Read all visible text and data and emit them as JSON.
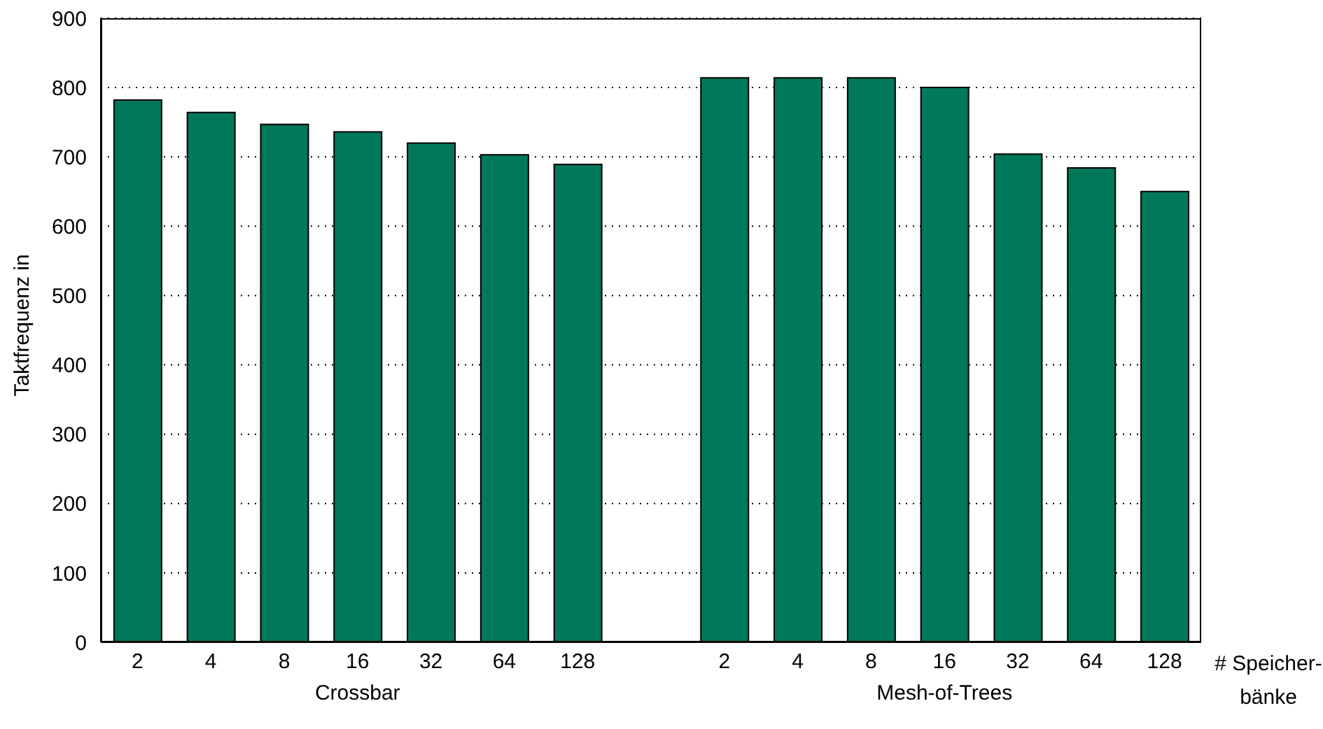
{
  "chart_data": {
    "type": "bar",
    "ylabel": "Taktfrequenz in",
    "xlabel": "# Speicher-bänke",
    "categories": [
      "2",
      "4",
      "8",
      "16",
      "32",
      "64",
      "128",
      null,
      "2",
      "4",
      "8",
      "16",
      "32",
      "64",
      "128"
    ],
    "values": [
      782,
      764,
      747,
      736,
      720,
      703,
      689,
      null,
      814,
      814,
      814,
      800,
      704,
      684,
      650
    ],
    "color": "#00785a",
    "ylim": [
      0,
      900
    ],
    "yticks": [
      0,
      100,
      200,
      300,
      400,
      500,
      600,
      700,
      800,
      900
    ],
    "grid": "y",
    "annotations": [
      "Crossbar",
      "Mesh-of-Trees"
    ]
  }
}
